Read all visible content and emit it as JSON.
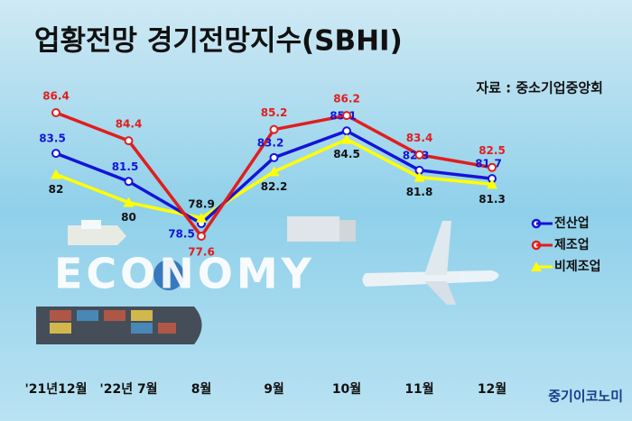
{
  "chart_data": {
    "type": "line",
    "title": "업황전망 경기전망지수(SBHI)",
    "source": "자료 : 중소기업중앙회",
    "background_text": "ECONOMY",
    "watermark": "중기이코노미",
    "categories": [
      "'21년12월",
      "'22년 7월",
      "8월",
      "9월",
      "10월",
      "11월",
      "12월"
    ],
    "series": [
      {
        "name": "전산업",
        "color": "#1414d8",
        "values": [
          83.5,
          81.5,
          78.5,
          83.2,
          85.1,
          82.3,
          81.7
        ]
      },
      {
        "name": "제조업",
        "color": "#e01e1e",
        "values": [
          86.4,
          84.4,
          77.6,
          85.2,
          86.2,
          83.4,
          82.5
        ]
      },
      {
        "name": "비제조업",
        "color": "#ffff00",
        "values": [
          82,
          80,
          78.9,
          82.2,
          84.5,
          81.8,
          81.3
        ]
      }
    ]
  }
}
